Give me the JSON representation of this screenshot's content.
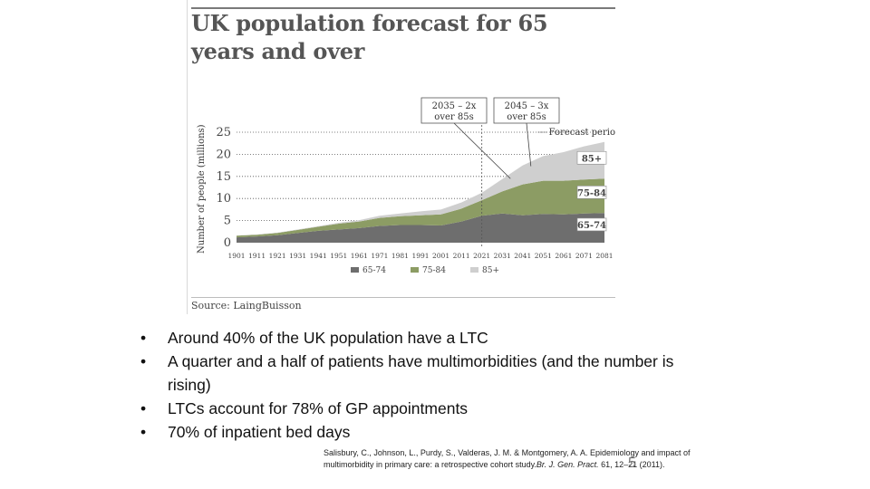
{
  "slide": {
    "figure": {
      "title": "UK population forecast for 65 years and over",
      "source": "Source: LaingBuisson"
    },
    "bullets": [
      {
        "marker": "•",
        "text": "Around 40% of the UK population have a LTC"
      },
      {
        "marker": "•",
        "text": "A quarter and a half of patients have multimorbidities (and the number is rising)"
      },
      {
        "marker": "•",
        "text": "LTCs account for 78% of GP appointments"
      },
      {
        "marker": "•",
        "text": "70% of inpatient bed days"
      }
    ],
    "citation": {
      "part1": "Salisbury, C., Johnson, L., Purdy, S., Valderas, J. M. & Montgomery, A. A. Epidemiology and impact of multimorbidity in primary care: a retrospective cohort study.",
      "journal": "Br. J. Gen. Pract.",
      "part2": " 61, 12–21 (2011)."
    },
    "page_number": "5"
  },
  "chart_data": {
    "type": "area",
    "stacked": true,
    "title": "UK population forecast for 65 years and over",
    "xlabel": "",
    "ylabel": "Number of people (millions)",
    "ylim": [
      0,
      25
    ],
    "yticks": [
      0,
      5,
      10,
      15,
      20,
      25
    ],
    "grid": true,
    "categories": [
      "1901",
      "1911",
      "1921",
      "1931",
      "1941",
      "1951",
      "1961",
      "1971",
      "1981",
      "1991",
      "2001",
      "2011",
      "2021",
      "2031",
      "2041",
      "2051",
      "2061",
      "2071",
      "2081"
    ],
    "series": [
      {
        "name": "65-74",
        "color": "#6e6e6e",
        "values": [
          1.2,
          1.4,
          1.7,
          2.2,
          2.7,
          3.0,
          3.3,
          3.8,
          4.0,
          4.0,
          3.9,
          4.8,
          6.1,
          6.6,
          6.2,
          6.5,
          6.4,
          6.6,
          6.7
        ]
      },
      {
        "name": "75-84",
        "color": "#8c9c64",
        "values": [
          0.4,
          0.4,
          0.5,
          0.7,
          0.9,
          1.3,
          1.5,
          1.8,
          2.0,
          2.2,
          2.5,
          2.9,
          3.5,
          5.0,
          7.0,
          7.5,
          7.6,
          7.7,
          7.8
        ]
      },
      {
        "name": "85+",
        "color": "#cfcfcf",
        "values": [
          0.05,
          0.06,
          0.08,
          0.1,
          0.15,
          0.2,
          0.3,
          0.5,
          0.6,
          0.9,
          1.1,
          1.4,
          1.7,
          2.8,
          4.3,
          5.6,
          6.5,
          7.5,
          8.3
        ]
      }
    ],
    "forecast_start": "2021",
    "annotations": [
      {
        "label": "2035 – 2x over 85s",
        "line1": "2035 – 2x",
        "line2": "over 85s",
        "at": 2035,
        "points_to": 2035
      },
      {
        "label": "2045 – 3x over 85s",
        "line1": "2045 – 3x",
        "line2": "over 85s",
        "at": 2045,
        "points_to": 2045
      }
    ],
    "forecast_label": "Forecast period",
    "series_labels": [
      "85+",
      "75-84",
      "65-74"
    ],
    "legend": [
      "65-74",
      "75-84",
      "85+"
    ]
  }
}
